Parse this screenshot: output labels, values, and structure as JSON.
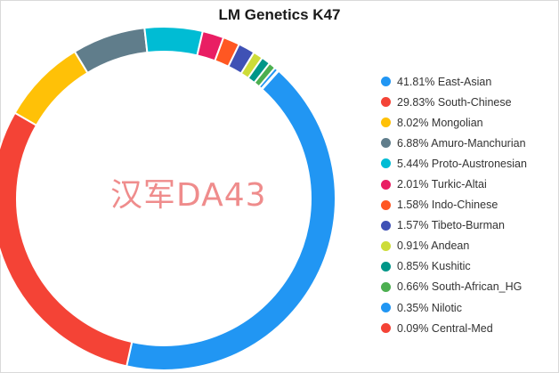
{
  "chart_data": {
    "type": "pie",
    "title": "LM Genetics K47",
    "watermark": "汉军DA43",
    "legend_position": "right",
    "slices": [
      {
        "label": "41.81% East-Asian",
        "value": 41.81,
        "color": "#2196f3"
      },
      {
        "label": "29.83% South-Chinese",
        "value": 29.83,
        "color": "#f44336"
      },
      {
        "label": "8.02% Mongolian",
        "value": 8.02,
        "color": "#ffc107"
      },
      {
        "label": "6.88% Amuro-Manchurian",
        "value": 6.88,
        "color": "#607d8b"
      },
      {
        "label": "5.44% Proto-Austronesian",
        "value": 5.44,
        "color": "#00bcd4"
      },
      {
        "label": "2.01% Turkic-Altai",
        "value": 2.01,
        "color": "#e91e63"
      },
      {
        "label": "1.58% Indo-Chinese",
        "value": 1.58,
        "color": "#ff5722"
      },
      {
        "label": "1.57% Tibeto-Burman",
        "value": 1.57,
        "color": "#3f51b5"
      },
      {
        "label": "0.91% Andean",
        "value": 0.91,
        "color": "#cddc39"
      },
      {
        "label": "0.85% Kushitic",
        "value": 0.85,
        "color": "#009688"
      },
      {
        "label": "0.66% South-African_HG",
        "value": 0.66,
        "color": "#4caf50"
      },
      {
        "label": "0.35% Nilotic",
        "value": 0.35,
        "color": "#2196f3"
      },
      {
        "label": "0.09% Central-Med",
        "value": 0.09,
        "color": "#f44336"
      }
    ]
  }
}
